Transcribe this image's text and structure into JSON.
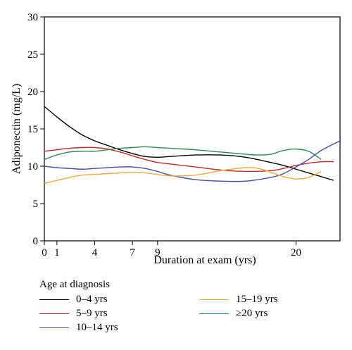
{
  "chart_data": {
    "type": "line",
    "title": "",
    "xlabel": "Duration at exam (yrs)",
    "ylabel": "Adiponectin (mg/L)",
    "xlim": [
      0,
      23.5
    ],
    "ylim": [
      0,
      30
    ],
    "x_ticks": [
      0,
      1,
      4,
      7,
      9,
      20
    ],
    "y_ticks": [
      0,
      5,
      10,
      15,
      20,
      25,
      30
    ],
    "legend_title": "Age at diagnosis",
    "legend_position": "bottom",
    "grid": false,
    "series": [
      {
        "name": "0–4 yrs",
        "color": "#000000",
        "x": [
          0,
          1,
          2,
          3,
          4,
          5,
          6,
          7,
          8,
          9,
          10,
          12,
          14,
          16,
          18,
          19,
          20,
          21,
          22,
          23
        ],
        "y": [
          18,
          16.6,
          15.3,
          14.2,
          13.4,
          12.8,
          12.2,
          11.7,
          11.3,
          11.2,
          11.3,
          11.5,
          11.5,
          11.2,
          10.5,
          10.1,
          9.6,
          9.1,
          8.6,
          8.1
        ]
      },
      {
        "name": "5–9 yrs",
        "color": "#c62828",
        "x": [
          0,
          1,
          2,
          3,
          4,
          5,
          6,
          7,
          8,
          9,
          10,
          12,
          14,
          16,
          18,
          19,
          20,
          21,
          22,
          23
        ],
        "y": [
          12,
          12.2,
          12.4,
          12.5,
          12.5,
          12.3,
          11.9,
          11.4,
          10.9,
          10.5,
          10.3,
          9.9,
          9.5,
          9.3,
          9.4,
          9.7,
          10.1,
          10.4,
          10.6,
          10.6
        ]
      },
      {
        "name": "10–14 yrs",
        "color": "#3f51a5",
        "x": [
          0,
          1,
          2,
          3,
          4,
          5,
          6,
          7,
          8,
          9,
          10,
          12,
          14,
          16,
          18,
          19,
          20,
          21,
          22,
          23.5
        ],
        "y": [
          10,
          9.8,
          9.7,
          9.6,
          9.7,
          9.8,
          9.9,
          9.9,
          9.7,
          9.3,
          8.8,
          8.2,
          8.0,
          8.0,
          8.5,
          9.0,
          9.9,
          10.9,
          12.1,
          13.4
        ]
      },
      {
        "name": "15–19 yrs",
        "color": "#f2a93b",
        "x": [
          0,
          1,
          2,
          3,
          4,
          5,
          6,
          7,
          8,
          9,
          10,
          12,
          14,
          16,
          17,
          18,
          19,
          20,
          21,
          22
        ],
        "y": [
          7.7,
          8.1,
          8.5,
          8.8,
          8.9,
          9.0,
          9.1,
          9.2,
          9.1,
          8.9,
          8.7,
          8.8,
          9.4,
          9.8,
          9.7,
          9.2,
          8.6,
          8.3,
          8.5,
          9.3
        ]
      },
      {
        "name": "≥20 yrs",
        "color": "#2e8b57",
        "x": [
          0,
          1,
          2,
          3,
          4,
          5,
          6,
          7,
          8,
          9,
          10,
          12,
          14,
          16,
          17,
          18,
          19,
          20,
          21,
          22
        ],
        "y": [
          10.9,
          11.5,
          11.9,
          12.0,
          12.0,
          12.2,
          12.4,
          12.5,
          12.6,
          12.5,
          12.4,
          12.2,
          11.9,
          11.6,
          11.5,
          11.6,
          12.1,
          12.3,
          12.0,
          10.9
        ]
      }
    ]
  }
}
